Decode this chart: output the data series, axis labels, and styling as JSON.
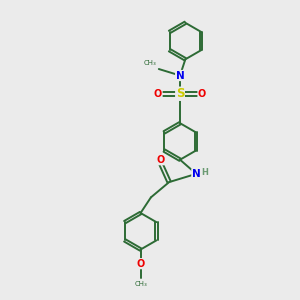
{
  "background_color": "#ebebeb",
  "bond_color": "#2d6b35",
  "atom_colors": {
    "N": "#0000ee",
    "O": "#ee0000",
    "S": "#cccc00",
    "C": "#2d6b35",
    "H": "#6a9a72"
  },
  "figsize": [
    3.0,
    3.0
  ],
  "dpi": 100,
  "lw": 1.4,
  "fs": 7.0
}
